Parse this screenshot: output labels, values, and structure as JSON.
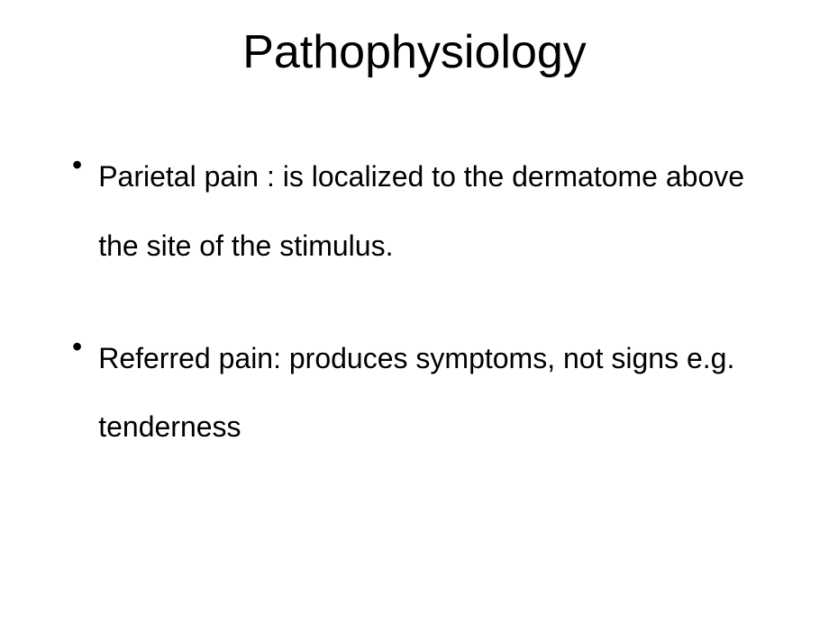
{
  "slide": {
    "title": "Pathophysiology",
    "title_fontsize": 52,
    "body_fontsize": 32,
    "line_height": 2.4,
    "background_color": "#ffffff",
    "text_color": "#000000",
    "font_family": "Arial",
    "bullets": [
      {
        "marker": "•",
        "text": "Parietal pain : is localized to the dermatome above the site of the stimulus."
      },
      {
        "marker": "•",
        "text": "Referred pain: produces symptoms, not signs e.g. tenderness"
      }
    ]
  }
}
